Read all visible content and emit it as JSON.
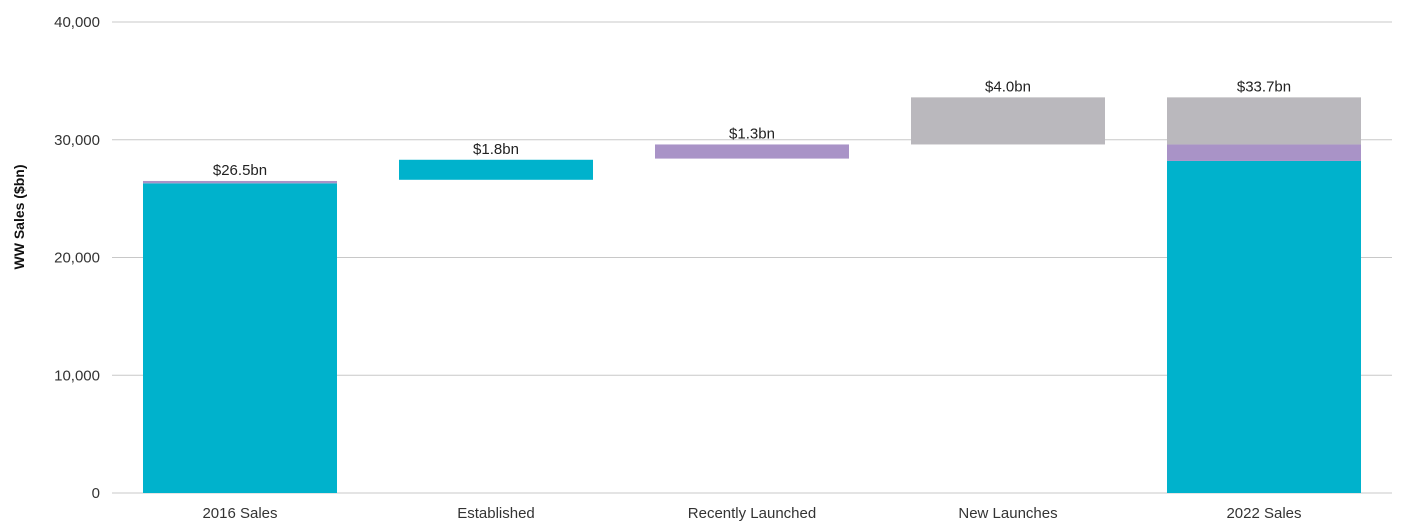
{
  "chart_data": {
    "type": "bar",
    "subtype": "waterfall-stacked",
    "title": "",
    "xlabel": "",
    "ylabel": "WW Sales ($bn)",
    "ylim": [
      0,
      40000
    ],
    "yticks": [
      0,
      10000,
      20000,
      30000,
      40000
    ],
    "ytick_labels": [
      "0",
      "10,000",
      "20,000",
      "30,000",
      "40,000"
    ],
    "grid": true,
    "legend": "none",
    "categories": [
      "2016 Sales",
      "Established",
      "Recently Launched",
      "New Launches",
      "2022 Sales"
    ],
    "series": [
      {
        "color": "#00b2cc",
        "values": [
          {
            "from": 0,
            "to": 26300
          },
          {
            "from": 26600,
            "to": 28300
          },
          null,
          null,
          {
            "from": 0,
            "to": 28200
          }
        ]
      },
      {
        "color": "#a993c7",
        "values": [
          {
            "from": 26300,
            "to": 26500
          },
          null,
          {
            "from": 28400,
            "to": 29600
          },
          null,
          {
            "from": 28200,
            "to": 29600
          }
        ]
      },
      {
        "color": "#bab8bd",
        "values": [
          null,
          null,
          null,
          {
            "from": 29600,
            "to": 33600
          },
          {
            "from": 29600,
            "to": 33600
          }
        ]
      }
    ],
    "data_labels": [
      {
        "category": "2016 Sales",
        "text": "$26.5bn"
      },
      {
        "category": "Established",
        "text": "$1.8bn"
      },
      {
        "category": "Recently Launched",
        "text": "$1.3bn"
      },
      {
        "category": "New Launches",
        "text": "$4.0bn"
      },
      {
        "category": "2022 Sales",
        "text": "$33.7bn"
      }
    ]
  }
}
